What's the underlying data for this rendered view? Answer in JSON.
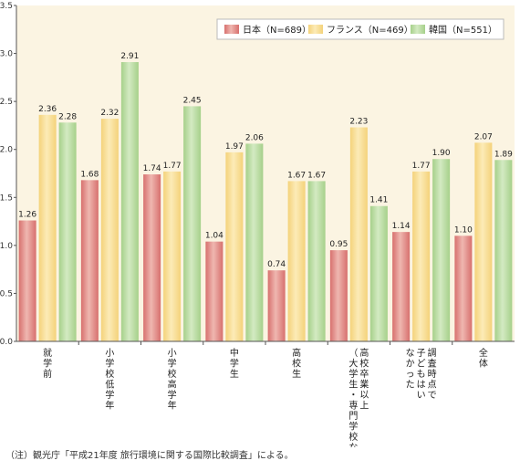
{
  "chart_data": {
    "type": "bar",
    "categories": [
      "就学前",
      "小学校低学年",
      "小学校高学年",
      "中学生",
      "高校生",
      "高校卒業以上（大学生・専門学校など）",
      "調査時点で子どもはいなかった",
      "全体"
    ],
    "series": [
      {
        "name": "日本（N=689）",
        "values": [
          1.26,
          1.68,
          1.74,
          1.04,
          0.74,
          0.95,
          1.14,
          1.1
        ],
        "labels": [
          "1.26",
          "1.68",
          "1.74",
          "1.04",
          "0.74",
          "0.95",
          "1.14",
          "1.10"
        ]
      },
      {
        "name": "フランス（N=469）",
        "values": [
          2.36,
          2.32,
          1.77,
          1.97,
          1.67,
          2.23,
          1.77,
          2.07
        ],
        "labels": [
          "2.36",
          "2.32",
          "1.77",
          "1.97",
          "1.67",
          "2.23",
          "1.77",
          "2.07"
        ]
      },
      {
        "name": "韓国（N=551）",
        "values": [
          2.28,
          2.91,
          2.45,
          2.06,
          1.67,
          1.41,
          1.9,
          1.89
        ],
        "labels": [
          "2.28",
          "2.91",
          "2.45",
          "2.06",
          "1.67",
          "1.41",
          "1.90",
          "1.89"
        ]
      }
    ],
    "yticks": [
      "0.0",
      "0.5",
      "1.0",
      "1.5",
      "2.0",
      "2.5",
      "3.0",
      "3.5"
    ],
    "ylim": [
      0,
      3.5
    ],
    "legend_position": "top-right",
    "grid": false
  },
  "colors": {
    "background": "#fbf4e2",
    "series": [
      "#d7706e",
      "#f4d27a",
      "#a6d08a"
    ],
    "series_light": [
      "#efb7b0",
      "#fcebb7",
      "#d3eac2"
    ]
  },
  "note": "（注）観光庁「平成21年度 旅行環境に関する国際比較調査」による。"
}
